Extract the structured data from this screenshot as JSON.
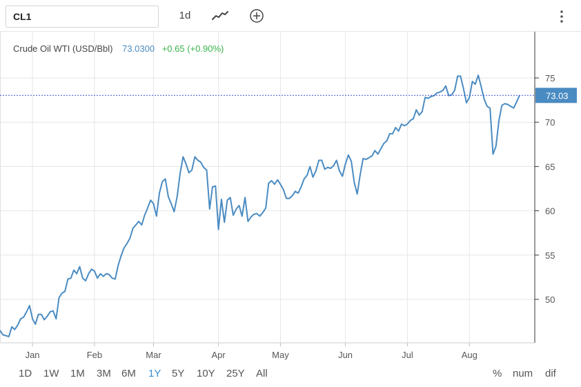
{
  "toolbar": {
    "symbol_value": "CL1",
    "interval_label": "1d",
    "chart_type_icon": "line-chart-icon",
    "compare_icon": "plus-circle-icon",
    "menu_icon": "vertical-dots-icon"
  },
  "legend": {
    "name": "Crude Oil WTI (USD/Bbl)",
    "last": "73.0300",
    "change": "+0.65 (+0.90%)"
  },
  "range_buttons": [
    "1D",
    "1W",
    "1M",
    "3M",
    "6M",
    "1Y",
    "5Y",
    "10Y",
    "25Y",
    "All"
  ],
  "range_active": "1Y",
  "mode_buttons": [
    "%",
    "num",
    "dif"
  ],
  "colors": {
    "line": "#4a8bc2",
    "last_price_line": "#3b4bd0",
    "price_label_bg": "#4a8bc2",
    "change_positive": "#3ab34a",
    "active_range": "#3a8dd0",
    "grid": "#e6e6e6"
  },
  "chart_data": {
    "type": "line",
    "title": "Crude Oil WTI (USD/Bbl)",
    "xlabel": "",
    "ylabel": "",
    "ylim": [
      45,
      79
    ],
    "grid": true,
    "y_ticks": [
      50,
      55,
      60,
      65,
      70,
      75
    ],
    "y_tick_labels": [
      "50",
      "55",
      "60",
      "65",
      "70",
      "75"
    ],
    "x_ticks": [
      "Jan",
      "Feb",
      "Mar",
      "Apr",
      "May",
      "Jun",
      "Jul",
      "Aug"
    ],
    "last_value_label": "73.03",
    "series": [
      {
        "values": [
          46.5,
          46.0,
          45.9,
          45.8,
          46.9,
          46.6,
          47.1,
          47.8,
          48.0,
          48.6,
          49.3,
          47.8,
          47.2,
          48.3,
          48.3,
          47.7,
          48.1,
          48.6,
          48.7,
          47.8,
          50.2,
          50.7,
          50.9,
          52.3,
          52.4,
          53.3,
          52.9,
          53.7,
          52.4,
          52.1,
          52.9,
          53.4,
          53.2,
          52.4,
          52.9,
          52.6,
          52.9,
          52.8,
          52.4,
          52.3,
          53.8,
          54.9,
          55.8,
          56.3,
          56.9,
          58.0,
          58.4,
          58.8,
          58.4,
          59.5,
          60.3,
          61.2,
          60.8,
          59.4,
          62.0,
          63.3,
          63.6,
          61.6,
          60.8,
          59.9,
          61.6,
          64.2,
          66.1,
          65.3,
          64.3,
          64.6,
          66.1,
          65.7,
          65.5,
          64.9,
          64.6,
          60.2,
          62.7,
          62.8,
          57.9,
          61.3,
          58.7,
          61.2,
          61.5,
          59.5,
          60.2,
          60.6,
          59.4,
          61.5,
          58.8,
          59.3,
          59.6,
          59.7,
          59.4,
          59.8,
          60.3,
          63.1,
          63.4,
          63.0,
          63.5,
          63.0,
          62.4,
          61.4,
          61.4,
          61.7,
          62.2,
          62.0,
          62.7,
          63.6,
          64.0,
          65.0,
          63.8,
          64.5,
          65.7,
          65.7,
          64.7,
          64.9,
          64.8,
          65.1,
          65.7,
          64.5,
          63.9,
          65.3,
          66.3,
          65.6,
          63.2,
          61.9,
          64.1,
          65.9,
          65.8,
          66.0,
          66.2,
          66.8,
          66.4,
          67.0,
          67.6,
          67.9,
          68.7,
          68.7,
          69.4,
          69.0,
          69.8,
          69.6,
          69.8,
          70.2,
          70.4,
          71.4,
          70.8,
          71.2,
          72.8,
          72.7,
          72.9,
          73.0,
          73.3,
          73.4,
          73.6,
          74.1,
          73.0,
          73.1,
          73.6,
          75.2,
          75.2,
          73.8,
          72.2,
          72.8,
          74.6,
          74.3,
          75.3,
          74.0,
          72.6,
          71.8,
          71.6,
          66.4,
          67.3,
          70.2,
          71.9,
          72.1,
          72.0,
          71.8,
          71.6,
          72.3,
          73.03
        ]
      }
    ]
  }
}
